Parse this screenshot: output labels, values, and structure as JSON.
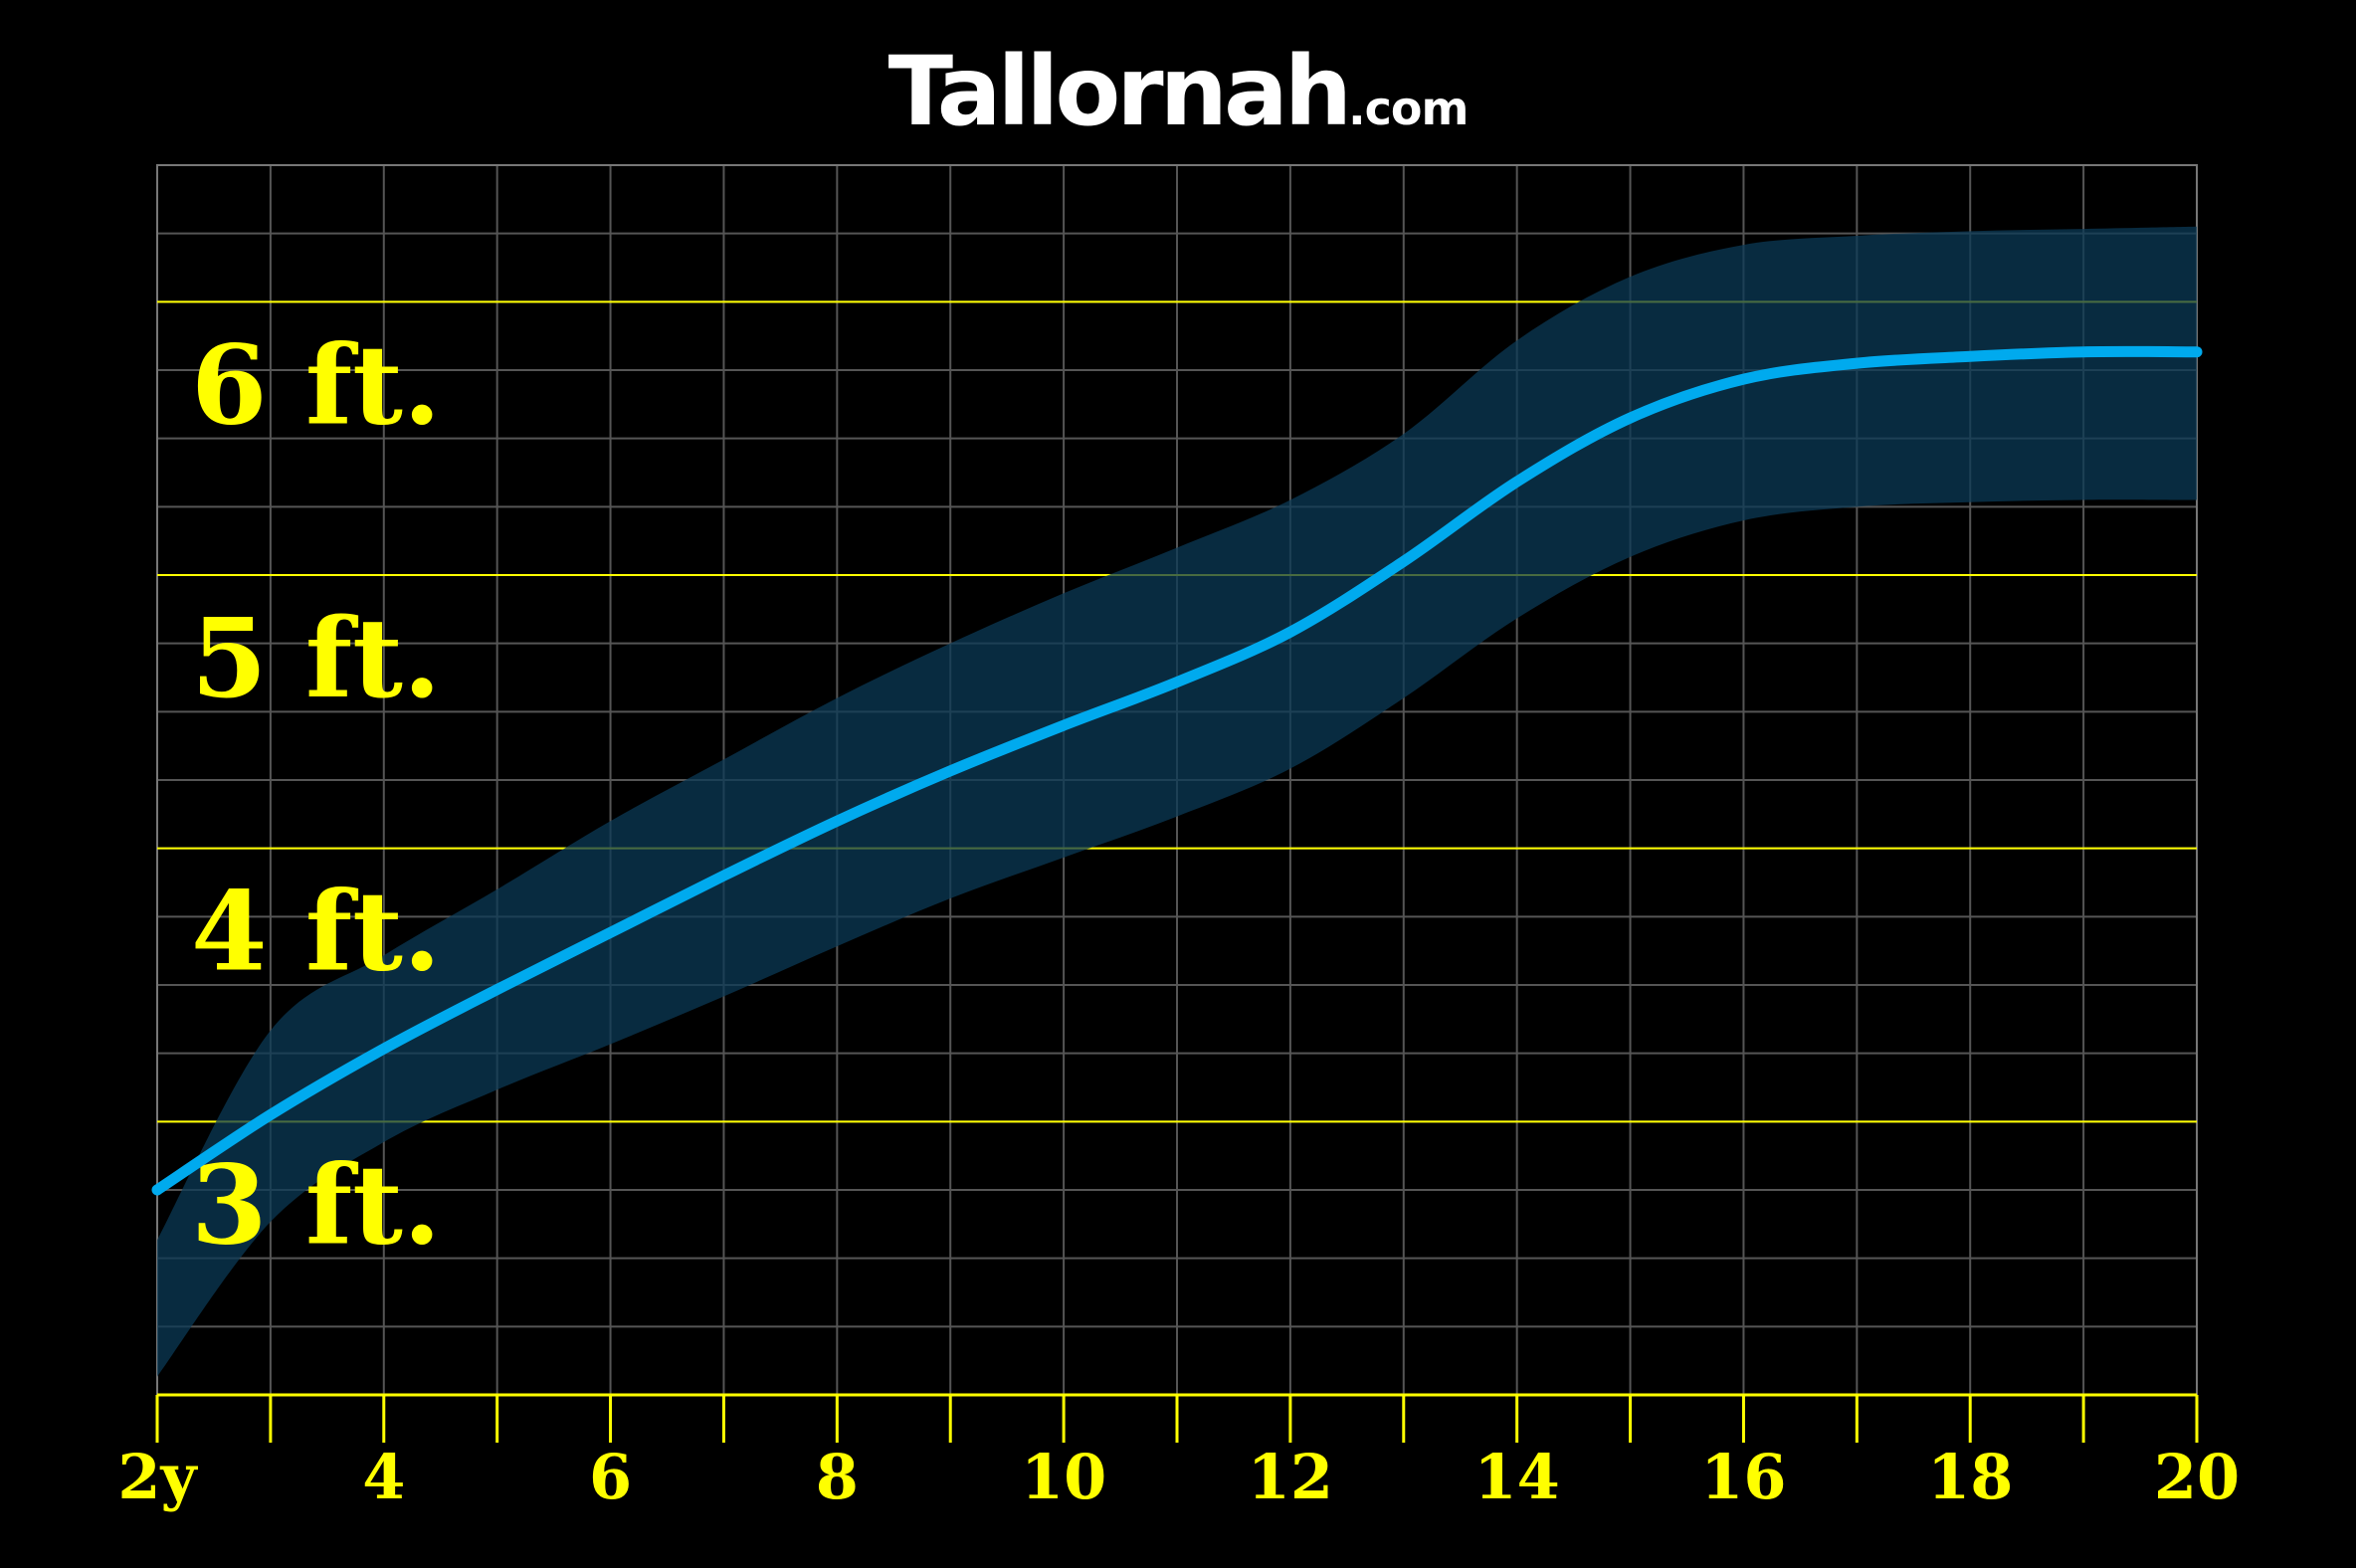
{
  "brand": {
    "name": "Tallornah",
    "suffix": ".com"
  },
  "chart_data": {
    "type": "line",
    "x_tick_labels": [
      "2y",
      "4",
      "6",
      "8",
      "10",
      "12",
      "14",
      "16",
      "18",
      "20"
    ],
    "x_ticks": [
      2,
      4,
      6,
      8,
      10,
      12,
      14,
      16,
      18,
      20
    ],
    "xlim": [
      2,
      20
    ],
    "ylim": [
      24,
      78
    ],
    "y_unit": "inches",
    "y_labels": [
      {
        "value": 72,
        "text": "6 ft."
      },
      {
        "value": 60,
        "text": "5 ft."
      },
      {
        "value": 48,
        "text": "4 ft."
      },
      {
        "value": 36,
        "text": "3 ft."
      }
    ],
    "grid": true,
    "series": [
      {
        "type": "line",
        "color": "#00aaee",
        "x": [
          2,
          3,
          4,
          5,
          6,
          7,
          8,
          9,
          10,
          11,
          12,
          13,
          14,
          15,
          16,
          17,
          18,
          19,
          20
        ],
        "y": [
          33,
          36.3,
          39.2,
          41.8,
          44.3,
          46.8,
          49.2,
          51.4,
          53.4,
          55.3,
          57.5,
          60.6,
          64.1,
          66.9,
          68.6,
          69.3,
          69.6,
          69.8,
          69.8
        ]
      },
      {
        "type": "band",
        "color": "#0b3a56",
        "x": [
          2,
          3,
          4,
          5,
          6,
          7,
          8,
          9,
          10,
          11,
          12,
          13,
          14,
          15,
          16,
          17,
          18,
          19,
          20
        ],
        "upper": [
          30.8,
          40,
          43.3,
          46.2,
          49.2,
          51.9,
          54.6,
          57,
          59.2,
          61.2,
          63.3,
          66.2,
          70.3,
          73.1,
          74.5,
          74.9,
          75.1,
          75.2,
          75.3
        ],
        "lower": [
          24.8,
          31.6,
          35.1,
          37.4,
          39.4,
          41.5,
          43.7,
          45.8,
          47.6,
          49.4,
          51.5,
          54.6,
          58.1,
          60.8,
          62.4,
          63,
          63.2,
          63.3,
          63.3
        ]
      }
    ]
  },
  "colors": {
    "background": "#000000",
    "accent": "#ffff00",
    "grid": "#555555",
    "line": "#00aaee",
    "band": "#0b3a56"
  }
}
